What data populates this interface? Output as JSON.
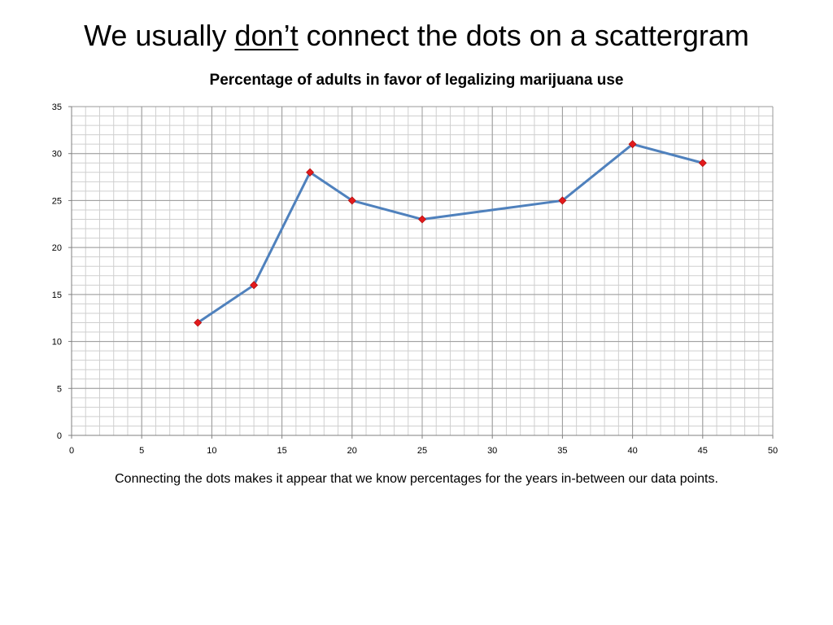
{
  "slide": {
    "title_before": "We usually",
    "title_emphasis": "don’t",
    "title_after": "connect the dots on a scattergram",
    "caption": "Connecting the dots makes it appear that we know percentages for the years in-between our data points."
  },
  "chart_data": {
    "type": "line",
    "title": "Percentage of adults in favor of legalizing marijuana use",
    "xlabel": "",
    "ylabel": "",
    "xlim": [
      0,
      50
    ],
    "ylim": [
      0,
      35
    ],
    "x_ticks": [
      "0",
      "5",
      "10",
      "15",
      "20",
      "25",
      "30",
      "35",
      "40",
      "45",
      "50"
    ],
    "y_ticks": [
      "0",
      "5",
      "10",
      "15",
      "20",
      "25",
      "30",
      "35"
    ],
    "grid": true,
    "legend": "none",
    "series": [
      {
        "x": [
          9,
          13,
          17,
          20,
          25,
          35,
          40,
          45
        ],
        "y": [
          12,
          16,
          28,
          25,
          23,
          25,
          31,
          29
        ],
        "line_color": "#4F81BD",
        "marker_color": "#E31A1C",
        "marker": "diamond"
      }
    ]
  }
}
